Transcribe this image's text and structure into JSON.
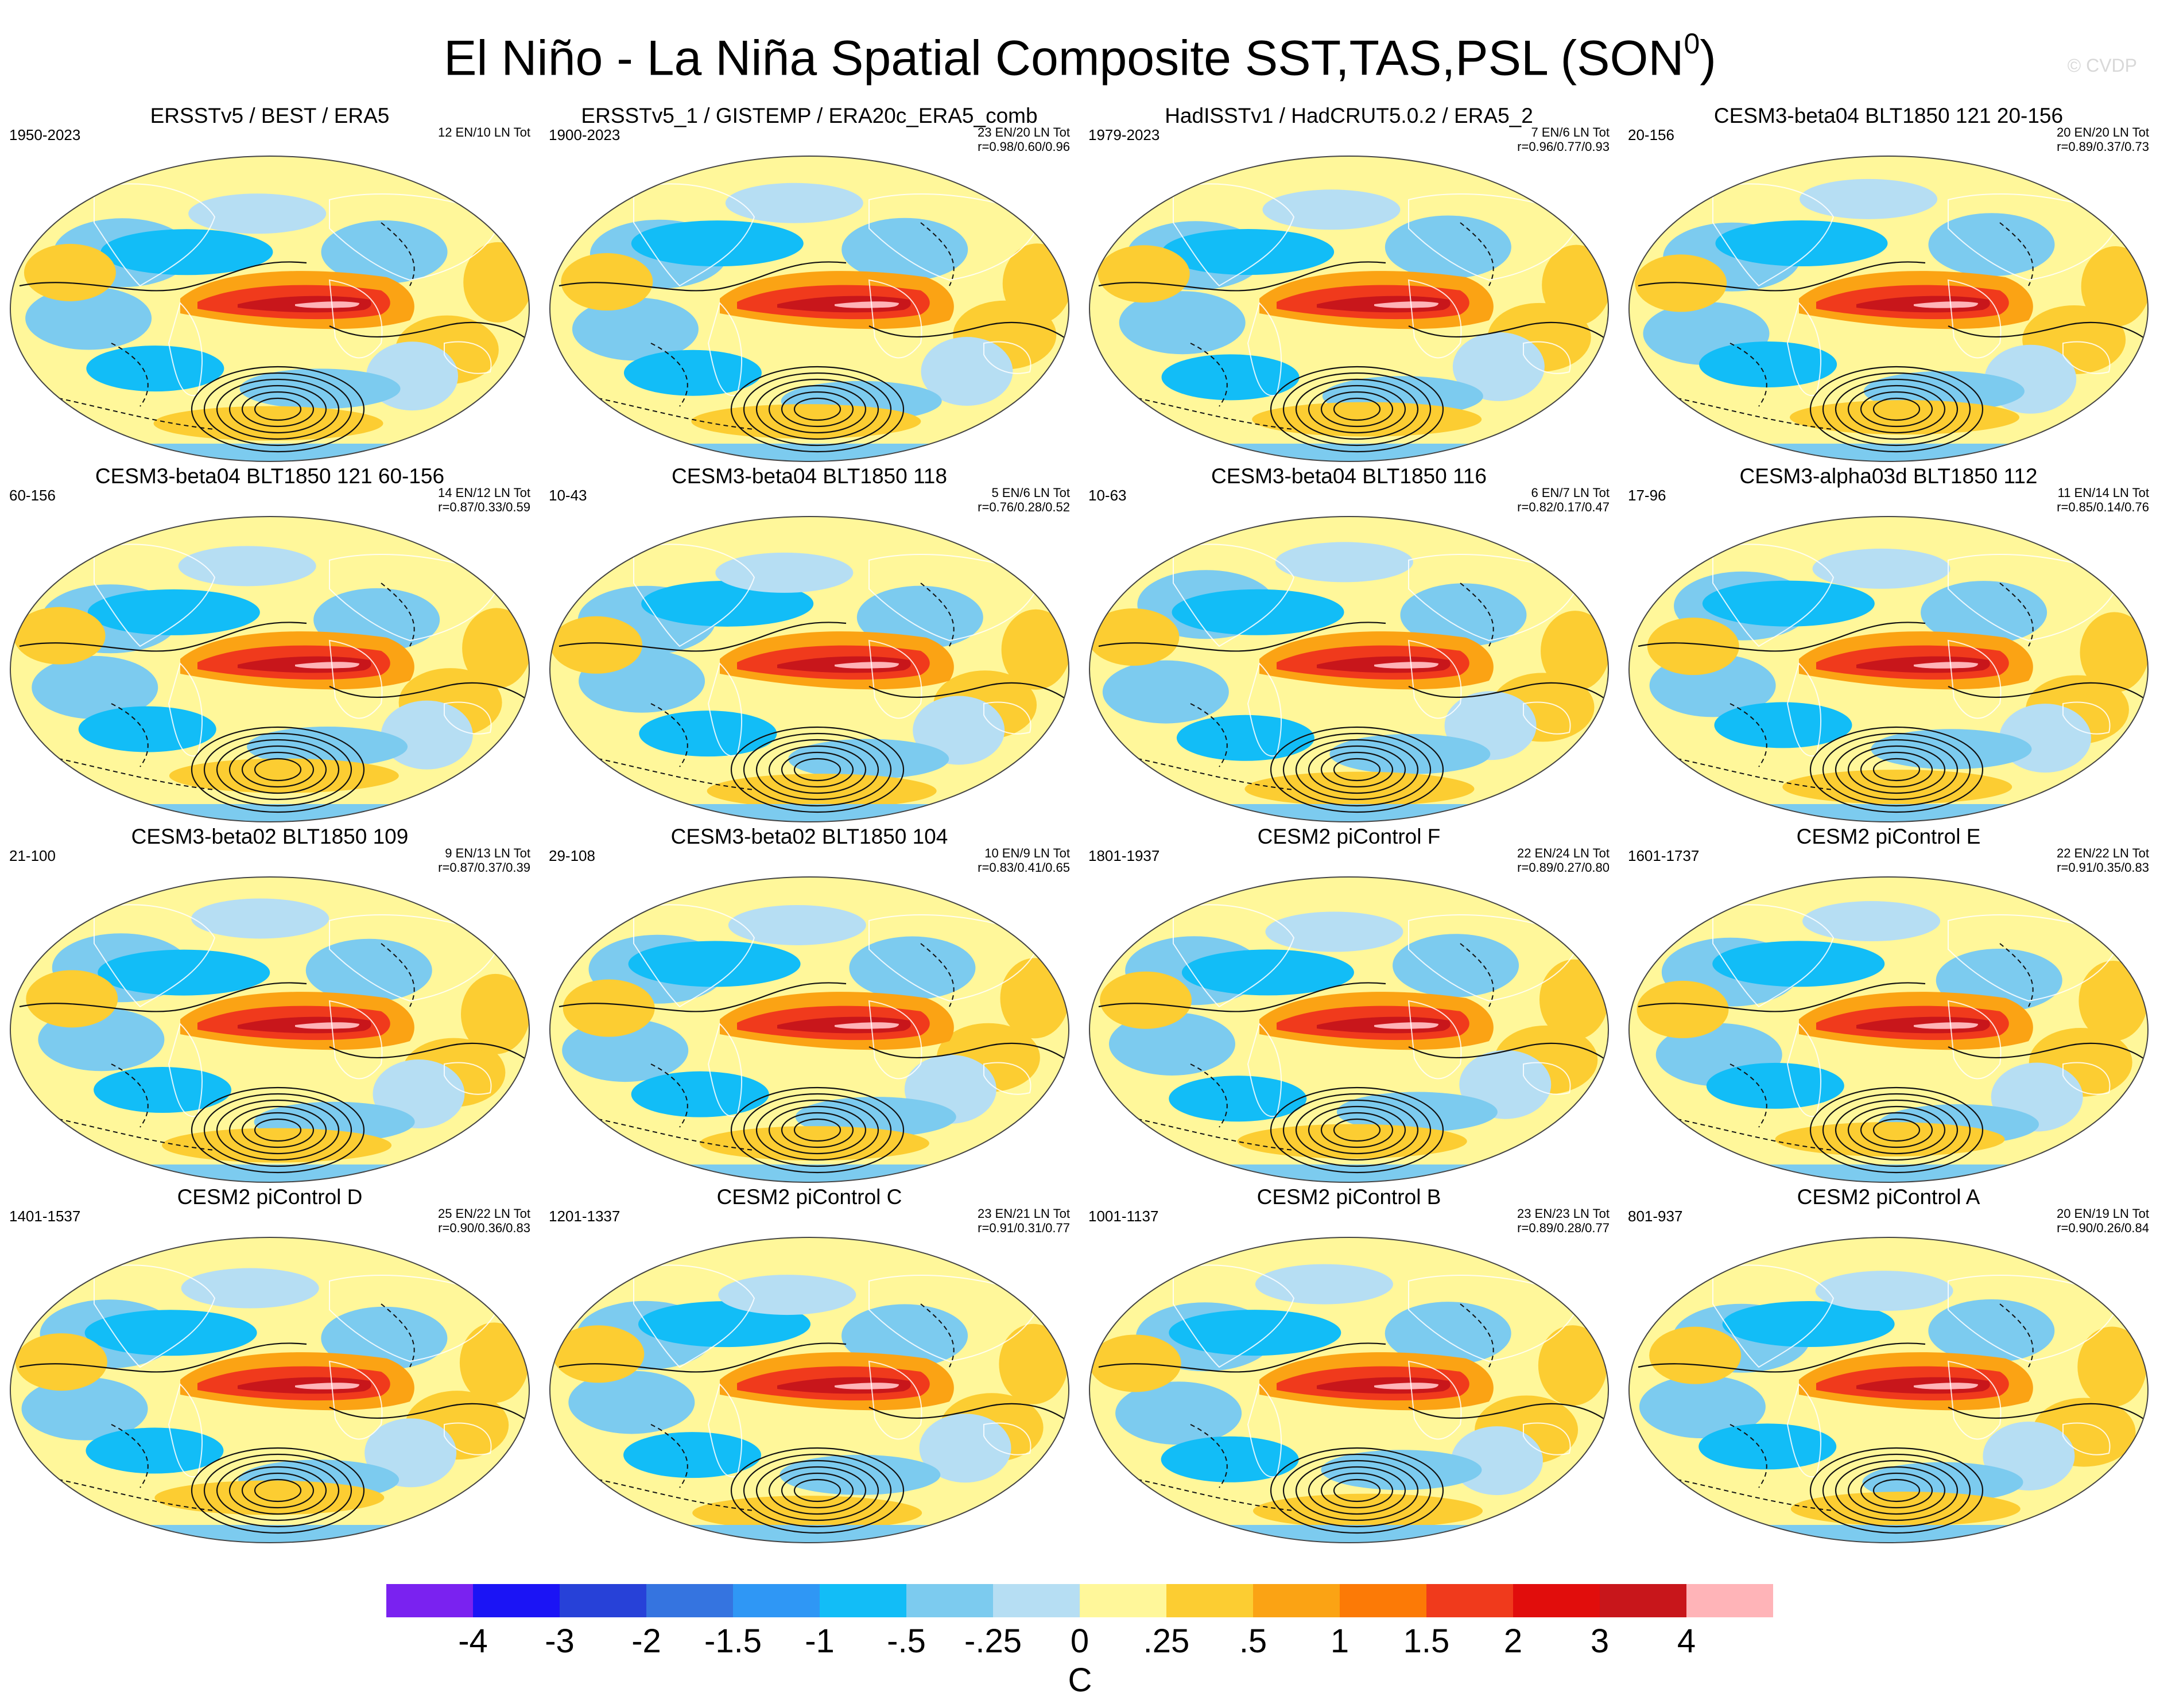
{
  "title": "El Niño - La Niña Spatial Composite SST,TAS,PSL (SON",
  "title_superscript": "0",
  "title_close": ")",
  "watermark": "© CVDP",
  "panels": [
    {
      "title": "ERSSTv5 / BEST / ERA5",
      "years": "1950-2023",
      "counts": "12 EN/10 LN Tot",
      "corr": ""
    },
    {
      "title": "ERSSTv5_1 / GISTEMP / ERA20c_ERA5_comb",
      "years": "1900-2023",
      "counts": "23 EN/20 LN Tot",
      "corr": "r=0.98/0.60/0.96"
    },
    {
      "title": "HadISSTv1 / HadCRUT5.0.2 / ERA5_2",
      "years": "1979-2023",
      "counts": "7 EN/6 LN Tot",
      "corr": "r=0.96/0.77/0.93"
    },
    {
      "title": "CESM3-beta04 BLT1850 121 20-156",
      "years": "20-156",
      "counts": "20 EN/20 LN Tot",
      "corr": "r=0.89/0.37/0.73"
    },
    {
      "title": "CESM3-beta04 BLT1850 121 60-156",
      "years": "60-156",
      "counts": "14 EN/12 LN Tot",
      "corr": "r=0.87/0.33/0.59"
    },
    {
      "title": "CESM3-beta04 BLT1850 118",
      "years": "10-43",
      "counts": "5 EN/6 LN Tot",
      "corr": "r=0.76/0.28/0.52"
    },
    {
      "title": "CESM3-beta04 BLT1850 116",
      "years": "10-63",
      "counts": "6 EN/7 LN Tot",
      "corr": "r=0.82/0.17/0.47"
    },
    {
      "title": "CESM3-alpha03d BLT1850 112",
      "years": "17-96",
      "counts": "11 EN/14 LN Tot",
      "corr": "r=0.85/0.14/0.76"
    },
    {
      "title": "CESM3-beta02 BLT1850 109",
      "years": "21-100",
      "counts": "9 EN/13 LN Tot",
      "corr": "r=0.87/0.37/0.39"
    },
    {
      "title": "CESM3-beta02 BLT1850 104",
      "years": "29-108",
      "counts": "10 EN/9 LN Tot",
      "corr": "r=0.83/0.41/0.65"
    },
    {
      "title": "CESM2 piControl F",
      "years": "1801-1937",
      "counts": "22 EN/24 LN Tot",
      "corr": "r=0.89/0.27/0.80"
    },
    {
      "title": "CESM2 piControl E",
      "years": "1601-1737",
      "counts": "22 EN/22 LN Tot",
      "corr": "r=0.91/0.35/0.83"
    },
    {
      "title": "CESM2 piControl D",
      "years": "1401-1537",
      "counts": "25 EN/22 LN Tot",
      "corr": "r=0.90/0.36/0.83"
    },
    {
      "title": "CESM2 piControl C",
      "years": "1201-1337",
      "counts": "23 EN/21 LN Tot",
      "corr": "r=0.91/0.31/0.77"
    },
    {
      "title": "CESM2 piControl B",
      "years": "1001-1137",
      "counts": "23 EN/23 LN Tot",
      "corr": "r=0.89/0.28/0.77"
    },
    {
      "title": "CESM2 piControl A",
      "years": "801-937",
      "counts": "20 EN/19 LN Tot",
      "corr": "r=0.90/0.26/0.84"
    }
  ],
  "colorbar": {
    "colors": [
      "#7a22f0",
      "#1b14f5",
      "#2741d8",
      "#3574e0",
      "#2f97f5",
      "#12bdf7",
      "#7ccbef",
      "#b6def3",
      "#fff79a",
      "#fccd32",
      "#fba314",
      "#fc7a06",
      "#f03a1c",
      "#e10d0c",
      "#c8161b",
      "#ffb4b8"
    ],
    "ticks": [
      "-4",
      "-3",
      "-2",
      "-1.5",
      "-1",
      "-.5",
      "-.25",
      "0",
      ".25",
      ".5",
      "1",
      "1.5",
      "2",
      "3",
      "4"
    ],
    "unit": "C"
  }
}
